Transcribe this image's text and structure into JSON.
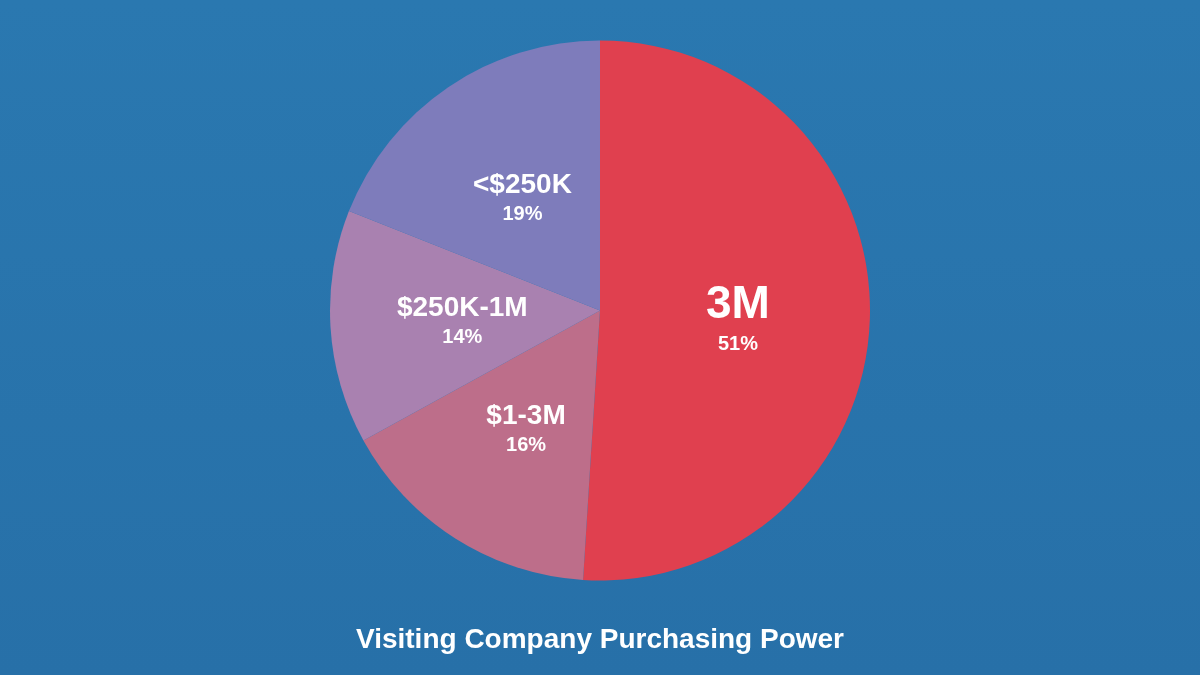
{
  "chart_data": {
    "type": "pie",
    "title": "Visiting Company Purchasing Power",
    "categories": [
      "3M",
      "$1-3M",
      "$250K-1M",
      "<$250K"
    ],
    "values": [
      51,
      16,
      14,
      19
    ],
    "colors": [
      "#e0404f",
      "#bd6e8a",
      "#a981b0",
      "#7e7cbb"
    ],
    "value_labels": [
      "51%",
      "16%",
      "14%",
      "19%"
    ],
    "legend": false
  }
}
